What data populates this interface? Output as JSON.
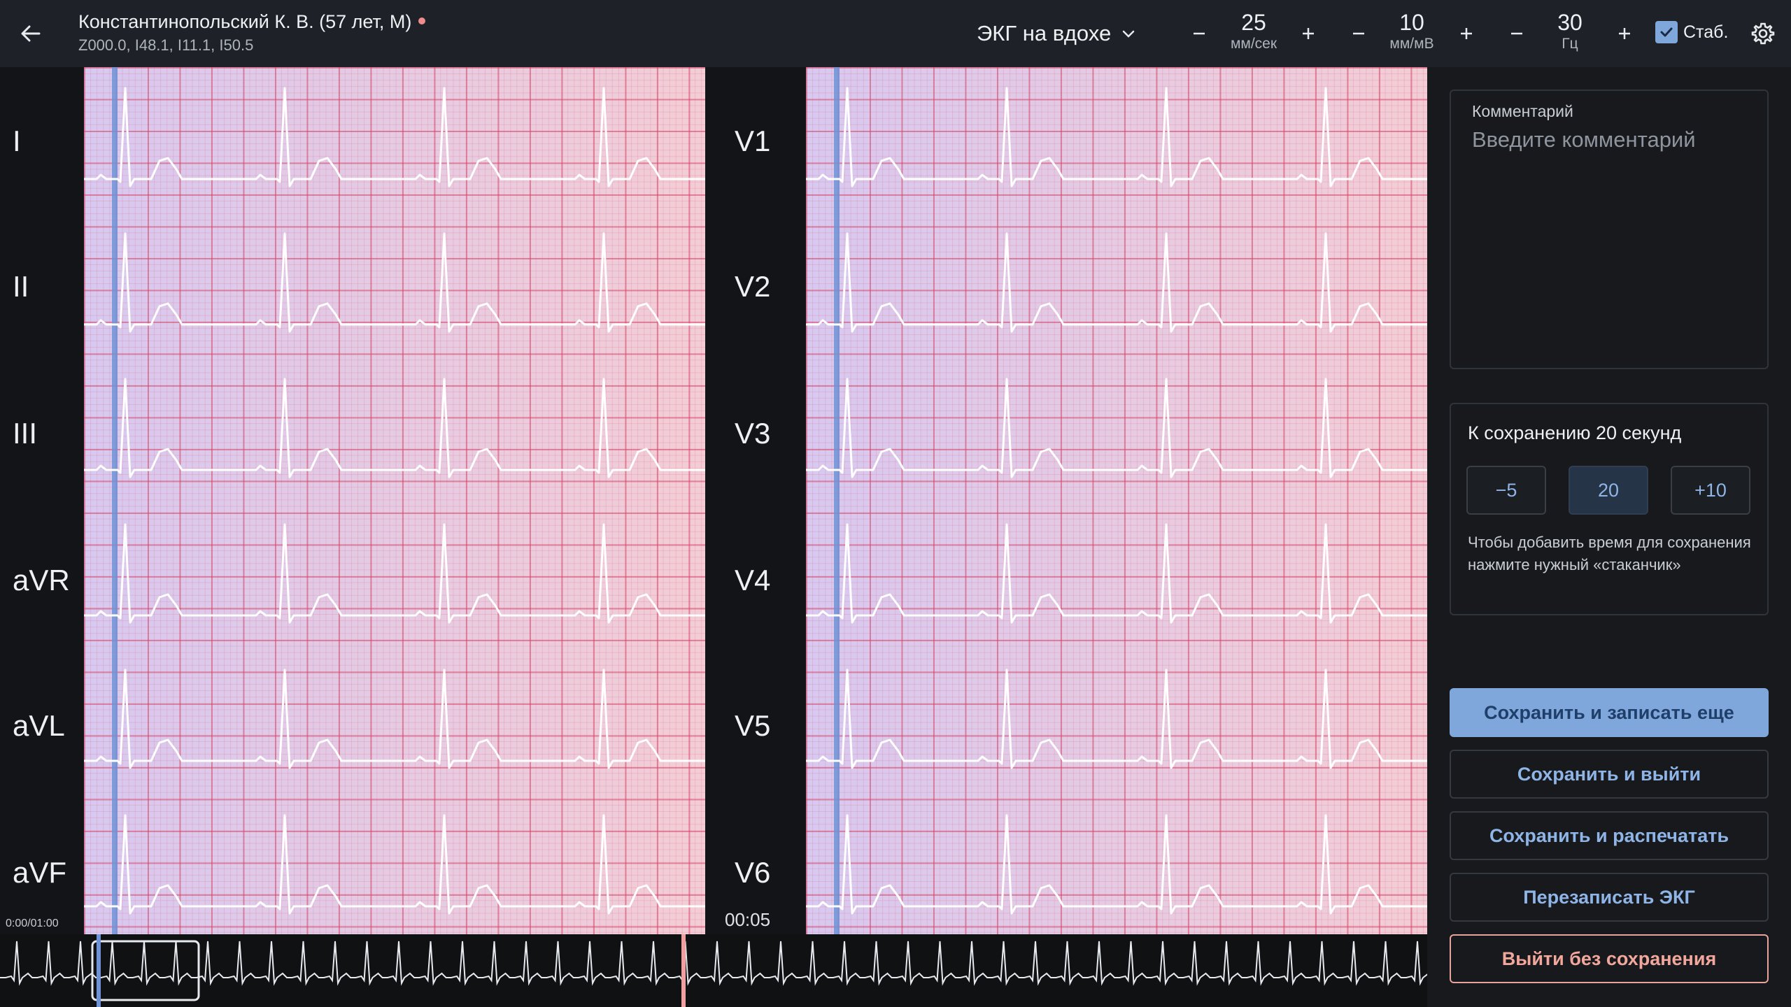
{
  "header": {
    "patient_name": "Константинопольский К. В. (57 лет, М)",
    "diagnosis_codes": "Z000.0, I48.1, I11.1, I50.5",
    "mode_label": "ЭКГ на вдохе",
    "speed": {
      "value": "25",
      "unit": "мм/сек"
    },
    "gain": {
      "value": "10",
      "unit": "мм/мВ"
    },
    "filter": {
      "value": "30",
      "unit": "Гц"
    },
    "stab_label": "Стаб.",
    "stab_checked": true,
    "minus_glyph": "−",
    "plus_glyph": "+"
  },
  "leads_left": [
    "I",
    "II",
    "III",
    "aVR",
    "aVL",
    "aVF"
  ],
  "leads_right": [
    "V1",
    "V2",
    "V3",
    "V4",
    "V5",
    "V6"
  ],
  "time_position": "0:00/01:00",
  "time_current": "00:05",
  "comment": {
    "label": "Комментарий",
    "placeholder": "Введите комментарий",
    "value": ""
  },
  "save_time": {
    "title": "К сохранению 20 секунд",
    "buttons": [
      "−5",
      "20",
      "+10"
    ],
    "active_index": 1,
    "hint": "Чтобы добавить время для сохранения нажмите нужный «стаканчик»"
  },
  "actions": {
    "save_and_record": "Сохранить и записать еще",
    "save_and_exit": "Сохранить и выйти",
    "save_and_print": "Сохранить и распечатать",
    "rerecord": "Перезаписать ЭКГ",
    "exit_no_save": "Выйти без сохранения"
  },
  "colors": {
    "accent": "#7fa7db",
    "danger": "#f2a79d",
    "grid_major": "#d64669",
    "ecg_trace": "#ffffff",
    "cursor": "#6f93d6"
  },
  "icons": {
    "back": "arrow-left-icon",
    "mode_dropdown": "chevron-down-icon",
    "settings": "gear-icon",
    "checkbox": "check-icon"
  }
}
